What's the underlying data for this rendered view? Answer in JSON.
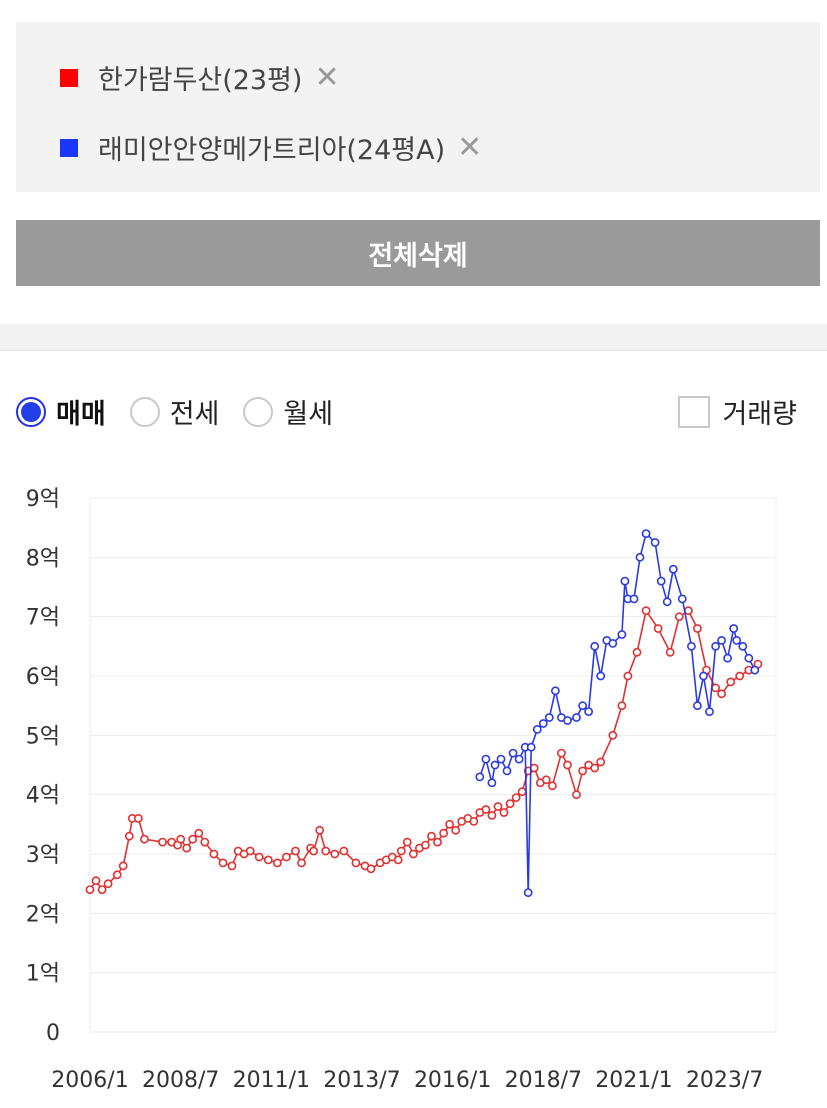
{
  "compare": {
    "items": [
      {
        "label": "한가람두산(23평)",
        "color": "#ff0000"
      },
      {
        "label": "래미안안양메가트리아(24평A)",
        "color": "#1a37ff"
      }
    ],
    "remove_symbol": "✕"
  },
  "clear_all_label": "전체삭제",
  "deal_types": [
    {
      "label": "매매",
      "selected": true
    },
    {
      "label": "전세",
      "selected": false
    },
    {
      "label": "월세",
      "selected": false
    }
  ],
  "volume_label": "거래량",
  "chart_data": {
    "type": "line",
    "title": "",
    "xlabel": "",
    "ylabel": "",
    "ylim": [
      0,
      9
    ],
    "y_unit": "억",
    "y_tick_labels": [
      "0",
      "1억",
      "2억",
      "3억",
      "4억",
      "5억",
      "6억",
      "7억",
      "8억",
      "9억"
    ],
    "x_range": [
      "2006-01",
      "2024-12"
    ],
    "x_tick_labels": [
      "2006/1",
      "2008/7",
      "2011/1",
      "2013/7",
      "2016/1",
      "2018/7",
      "2021/1",
      "2023/7"
    ],
    "grid": true,
    "series": [
      {
        "name": "한가람두산(23평)",
        "color": "#e03030",
        "points": [
          [
            "2006-01",
            2.4
          ],
          [
            "2006-03",
            2.55
          ],
          [
            "2006-05",
            2.4
          ],
          [
            "2006-07",
            2.5
          ],
          [
            "2006-10",
            2.65
          ],
          [
            "2006-12",
            2.8
          ],
          [
            "2007-02",
            3.3
          ],
          [
            "2007-03",
            3.6
          ],
          [
            "2007-05",
            3.6
          ],
          [
            "2007-07",
            3.25
          ],
          [
            "2008-01",
            3.2
          ],
          [
            "2008-04",
            3.2
          ],
          [
            "2008-06",
            3.15
          ],
          [
            "2008-07",
            3.25
          ],
          [
            "2008-09",
            3.1
          ],
          [
            "2008-11",
            3.25
          ],
          [
            "2009-01",
            3.35
          ],
          [
            "2009-03",
            3.2
          ],
          [
            "2009-06",
            3.0
          ],
          [
            "2009-09",
            2.85
          ],
          [
            "2009-12",
            2.8
          ],
          [
            "2010-02",
            3.05
          ],
          [
            "2010-04",
            3.0
          ],
          [
            "2010-06",
            3.05
          ],
          [
            "2010-09",
            2.95
          ],
          [
            "2010-12",
            2.9
          ],
          [
            "2011-03",
            2.85
          ],
          [
            "2011-06",
            2.95
          ],
          [
            "2011-09",
            3.05
          ],
          [
            "2011-11",
            2.85
          ],
          [
            "2012-02",
            3.1
          ],
          [
            "2012-03",
            3.05
          ],
          [
            "2012-05",
            3.4
          ],
          [
            "2012-07",
            3.05
          ],
          [
            "2012-10",
            3.0
          ],
          [
            "2013-01",
            3.05
          ],
          [
            "2013-05",
            2.85
          ],
          [
            "2013-08",
            2.8
          ],
          [
            "2013-10",
            2.75
          ],
          [
            "2014-01",
            2.85
          ],
          [
            "2014-03",
            2.9
          ],
          [
            "2014-05",
            2.95
          ],
          [
            "2014-07",
            2.9
          ],
          [
            "2014-08",
            3.05
          ],
          [
            "2014-10",
            3.2
          ],
          [
            "2014-12",
            3.0
          ],
          [
            "2015-02",
            3.1
          ],
          [
            "2015-04",
            3.15
          ],
          [
            "2015-06",
            3.3
          ],
          [
            "2015-08",
            3.2
          ],
          [
            "2015-10",
            3.35
          ],
          [
            "2015-12",
            3.5
          ],
          [
            "2016-02",
            3.4
          ],
          [
            "2016-04",
            3.55
          ],
          [
            "2016-06",
            3.6
          ],
          [
            "2016-08",
            3.55
          ],
          [
            "2016-10",
            3.7
          ],
          [
            "2016-12",
            3.75
          ],
          [
            "2017-02",
            3.65
          ],
          [
            "2017-04",
            3.8
          ],
          [
            "2017-06",
            3.7
          ],
          [
            "2017-08",
            3.85
          ],
          [
            "2017-10",
            3.95
          ],
          [
            "2017-12",
            4.05
          ],
          [
            "2018-02",
            4.4
          ],
          [
            "2018-04",
            4.45
          ],
          [
            "2018-06",
            4.2
          ],
          [
            "2018-08",
            4.25
          ],
          [
            "2018-10",
            4.15
          ],
          [
            "2019-01",
            4.7
          ],
          [
            "2019-03",
            4.5
          ],
          [
            "2019-06",
            4.0
          ],
          [
            "2019-08",
            4.4
          ],
          [
            "2019-10",
            4.5
          ],
          [
            "2019-12",
            4.45
          ],
          [
            "2020-02",
            4.55
          ],
          [
            "2020-06",
            5.0
          ],
          [
            "2020-09",
            5.5
          ],
          [
            "2020-11",
            6.0
          ],
          [
            "2021-02",
            6.4
          ],
          [
            "2021-05",
            7.1
          ],
          [
            "2021-09",
            6.8
          ],
          [
            "2022-01",
            6.4
          ],
          [
            "2022-04",
            7.0
          ],
          [
            "2022-07",
            7.1
          ],
          [
            "2022-10",
            6.8
          ],
          [
            "2023-01",
            6.1
          ],
          [
            "2023-04",
            5.8
          ],
          [
            "2023-06",
            5.7
          ],
          [
            "2023-09",
            5.9
          ],
          [
            "2023-12",
            6.0
          ],
          [
            "2024-03",
            6.1
          ],
          [
            "2024-06",
            6.2
          ]
        ]
      },
      {
        "name": "래미안안양메가트리아(24평A)",
        "color": "#2b3be0",
        "points": [
          [
            "2016-10",
            4.3
          ],
          [
            "2016-12",
            4.6
          ],
          [
            "2017-02",
            4.2
          ],
          [
            "2017-03",
            4.5
          ],
          [
            "2017-05",
            4.6
          ],
          [
            "2017-07",
            4.4
          ],
          [
            "2017-09",
            4.7
          ],
          [
            "2017-11",
            4.6
          ],
          [
            "2018-01",
            4.8
          ],
          [
            "2018-02",
            2.35
          ],
          [
            "2018-03",
            4.8
          ],
          [
            "2018-05",
            5.1
          ],
          [
            "2018-07",
            5.2
          ],
          [
            "2018-09",
            5.3
          ],
          [
            "2018-11",
            5.75
          ],
          [
            "2019-01",
            5.3
          ],
          [
            "2019-03",
            5.25
          ],
          [
            "2019-06",
            5.3
          ],
          [
            "2019-08",
            5.5
          ],
          [
            "2019-10",
            5.4
          ],
          [
            "2019-12",
            6.5
          ],
          [
            "2020-02",
            6.0
          ],
          [
            "2020-04",
            6.6
          ],
          [
            "2020-06",
            6.55
          ],
          [
            "2020-09",
            6.7
          ],
          [
            "2020-10",
            7.6
          ],
          [
            "2020-11",
            7.3
          ],
          [
            "2021-01",
            7.3
          ],
          [
            "2021-03",
            8.0
          ],
          [
            "2021-05",
            8.4
          ],
          [
            "2021-08",
            8.25
          ],
          [
            "2021-10",
            7.6
          ],
          [
            "2021-12",
            7.25
          ],
          [
            "2022-02",
            7.8
          ],
          [
            "2022-05",
            7.3
          ],
          [
            "2022-08",
            6.5
          ],
          [
            "2022-10",
            5.5
          ],
          [
            "2022-12",
            6.0
          ],
          [
            "2023-02",
            5.4
          ],
          [
            "2023-04",
            6.5
          ],
          [
            "2023-06",
            6.6
          ],
          [
            "2023-08",
            6.3
          ],
          [
            "2023-10",
            6.8
          ],
          [
            "2023-11",
            6.6
          ],
          [
            "2024-01",
            6.5
          ],
          [
            "2024-03",
            6.3
          ],
          [
            "2024-05",
            6.1
          ]
        ]
      }
    ]
  }
}
